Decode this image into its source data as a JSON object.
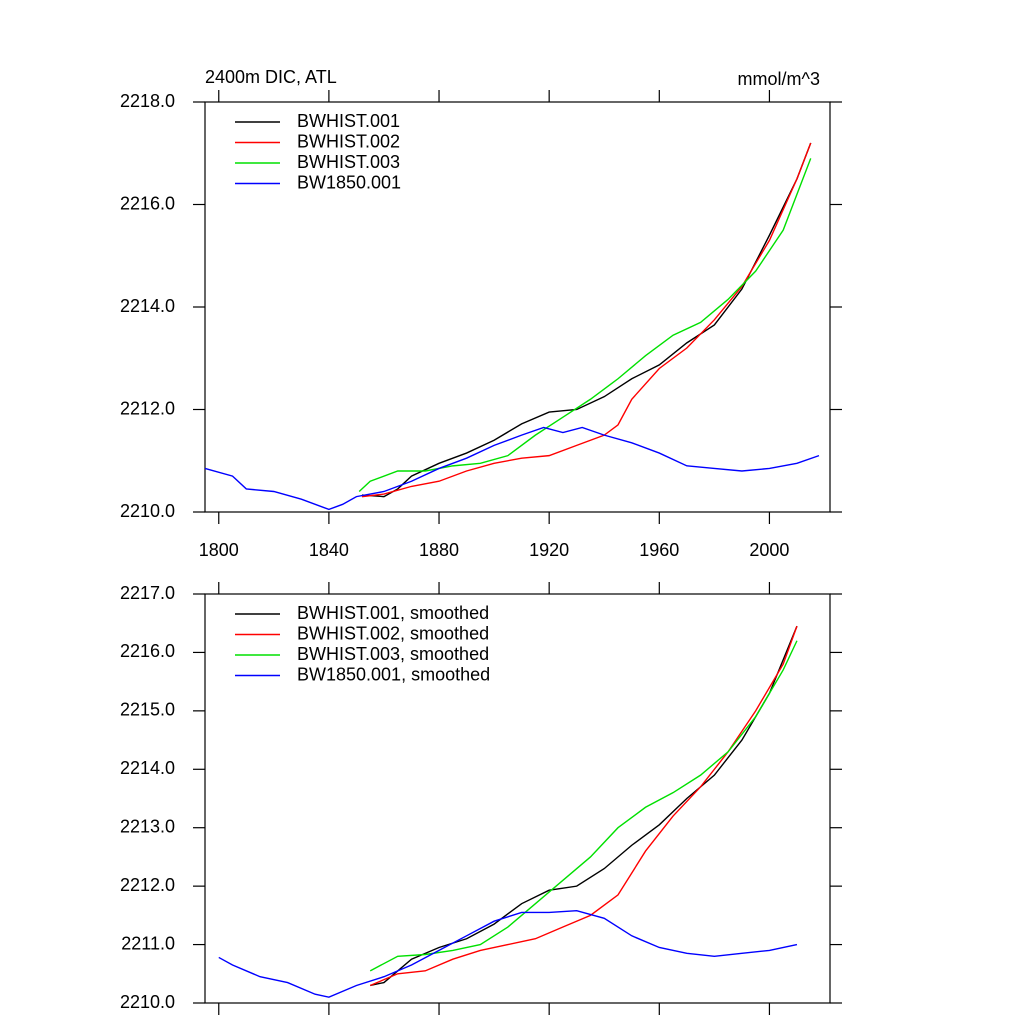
{
  "chart_data": [
    {
      "type": "line",
      "title": "2400m DIC, ATL",
      "units": "mmol/m^3",
      "xlim": [
        1795,
        2022
      ],
      "xticks": [
        1800,
        1840,
        1880,
        1920,
        1960,
        2000
      ],
      "ylim": [
        2210,
        2218
      ],
      "yticks": [
        {
          "value": 2210,
          "label": "2210.0"
        },
        {
          "value": 2212,
          "label": "2212.0"
        },
        {
          "value": 2214,
          "label": "2214.0"
        },
        {
          "value": 2216,
          "label": "2216.0"
        },
        {
          "value": 2218,
          "label": "2218.0"
        }
      ],
      "xtick_labels": true,
      "legend": "upper left",
      "series": [
        {
          "name": "BWHIST.001",
          "color": "#000000",
          "x": [
            1852,
            1860,
            1865,
            1870,
            1880,
            1890,
            1900,
            1910,
            1920,
            1930,
            1940,
            1950,
            1960,
            1970,
            1980,
            1990,
            2000,
            2010,
            2015
          ],
          "values": [
            2210.33,
            2210.3,
            2210.45,
            2210.7,
            2210.95,
            2211.15,
            2211.4,
            2211.72,
            2211.95,
            2212.0,
            2212.25,
            2212.6,
            2212.87,
            2213.3,
            2213.65,
            2214.35,
            2215.4,
            2216.5,
            2217.2
          ]
        },
        {
          "name": "BWHIST.002",
          "color": "#ff0000",
          "x": [
            1852,
            1860,
            1870,
            1880,
            1890,
            1900,
            1910,
            1920,
            1930,
            1940,
            1945,
            1950,
            1960,
            1970,
            1980,
            1990,
            2000,
            2010,
            2015
          ],
          "values": [
            2210.3,
            2210.35,
            2210.5,
            2210.6,
            2210.8,
            2210.95,
            2211.05,
            2211.1,
            2211.3,
            2211.5,
            2211.7,
            2212.2,
            2212.8,
            2213.2,
            2213.75,
            2214.4,
            2215.3,
            2216.5,
            2217.2
          ]
        },
        {
          "name": "BWHIST.003",
          "color": "#00e000",
          "x": [
            1851,
            1855,
            1865,
            1875,
            1885,
            1895,
            1905,
            1915,
            1925,
            1935,
            1945,
            1955,
            1965,
            1975,
            1985,
            1995,
            2005,
            2015
          ],
          "values": [
            2210.4,
            2210.6,
            2210.8,
            2210.8,
            2210.9,
            2210.95,
            2211.1,
            2211.5,
            2211.85,
            2212.2,
            2212.6,
            2213.05,
            2213.45,
            2213.7,
            2214.15,
            2214.7,
            2215.5,
            2216.9
          ]
        },
        {
          "name": "BW1850.001",
          "color": "#0000ff",
          "x": [
            1795,
            1805,
            1810,
            1820,
            1830,
            1840,
            1845,
            1850,
            1860,
            1870,
            1880,
            1890,
            1900,
            1910,
            1918,
            1925,
            1932,
            1940,
            1950,
            1960,
            1970,
            1980,
            1990,
            2000,
            2010,
            2018
          ],
          "values": [
            2210.85,
            2210.7,
            2210.45,
            2210.4,
            2210.25,
            2210.05,
            2210.15,
            2210.3,
            2210.4,
            2210.6,
            2210.85,
            2211.05,
            2211.3,
            2211.5,
            2211.65,
            2211.55,
            2211.65,
            2211.5,
            2211.35,
            2211.15,
            2210.9,
            2210.85,
            2210.8,
            2210.85,
            2210.95,
            2211.1
          ]
        }
      ]
    },
    {
      "type": "line",
      "xlim": [
        1795,
        2022
      ],
      "xticks": [
        1800,
        1840,
        1880,
        1920,
        1960,
        2000
      ],
      "ylim": [
        2210,
        2217
      ],
      "yticks": [
        {
          "value": 2210,
          "label": "2210.0"
        },
        {
          "value": 2211,
          "label": "2211.0"
        },
        {
          "value": 2212,
          "label": "2212.0"
        },
        {
          "value": 2213,
          "label": "2213.0"
        },
        {
          "value": 2214,
          "label": "2214.0"
        },
        {
          "value": 2215,
          "label": "2215.0"
        },
        {
          "value": 2216,
          "label": "2216.0"
        },
        {
          "value": 2217,
          "label": "2217.0"
        }
      ],
      "xtick_labels": false,
      "legend": "upper left",
      "series": [
        {
          "name": "BWHIST.001, smoothed",
          "color": "#000000",
          "x": [
            1855,
            1860,
            1870,
            1880,
            1890,
            1900,
            1910,
            1920,
            1930,
            1940,
            1950,
            1960,
            1970,
            1980,
            1990,
            2000,
            2010
          ],
          "values": [
            2210.3,
            2210.35,
            2210.75,
            2210.95,
            2211.1,
            2211.35,
            2211.7,
            2211.93,
            2212.0,
            2212.3,
            2212.7,
            2213.05,
            2213.5,
            2213.9,
            2214.5,
            2215.3,
            2216.45
          ]
        },
        {
          "name": "BWHIST.002, smoothed",
          "color": "#ff0000",
          "x": [
            1855,
            1865,
            1875,
            1885,
            1895,
            1905,
            1915,
            1925,
            1935,
            1945,
            1955,
            1965,
            1975,
            1985,
            1995,
            2005,
            2010
          ],
          "values": [
            2210.3,
            2210.5,
            2210.55,
            2210.75,
            2210.9,
            2211.0,
            2211.1,
            2211.3,
            2211.5,
            2211.85,
            2212.6,
            2213.2,
            2213.7,
            2214.3,
            2215.0,
            2215.8,
            2216.45
          ]
        },
        {
          "name": "BWHIST.003, smoothed",
          "color": "#00e000",
          "x": [
            1855,
            1865,
            1875,
            1885,
            1895,
            1905,
            1915,
            1925,
            1935,
            1945,
            1955,
            1965,
            1975,
            1985,
            1995,
            2005,
            2010
          ],
          "values": [
            2210.55,
            2210.8,
            2210.83,
            2210.9,
            2211.0,
            2211.3,
            2211.7,
            2212.1,
            2212.5,
            2213.0,
            2213.35,
            2213.6,
            2213.9,
            2214.3,
            2214.9,
            2215.7,
            2216.2
          ]
        },
        {
          "name": "BW1850.001, smoothed",
          "color": "#0000ff",
          "x": [
            1800,
            1805,
            1815,
            1825,
            1835,
            1840,
            1850,
            1860,
            1870,
            1880,
            1890,
            1900,
            1910,
            1920,
            1930,
            1940,
            1950,
            1960,
            1970,
            1980,
            1990,
            2000,
            2010
          ],
          "values": [
            2210.78,
            2210.65,
            2210.45,
            2210.35,
            2210.15,
            2210.1,
            2210.3,
            2210.45,
            2210.65,
            2210.9,
            2211.15,
            2211.4,
            2211.55,
            2211.55,
            2211.58,
            2211.45,
            2211.15,
            2210.95,
            2210.85,
            2210.8,
            2210.85,
            2210.9,
            2211.0
          ]
        }
      ]
    }
  ]
}
